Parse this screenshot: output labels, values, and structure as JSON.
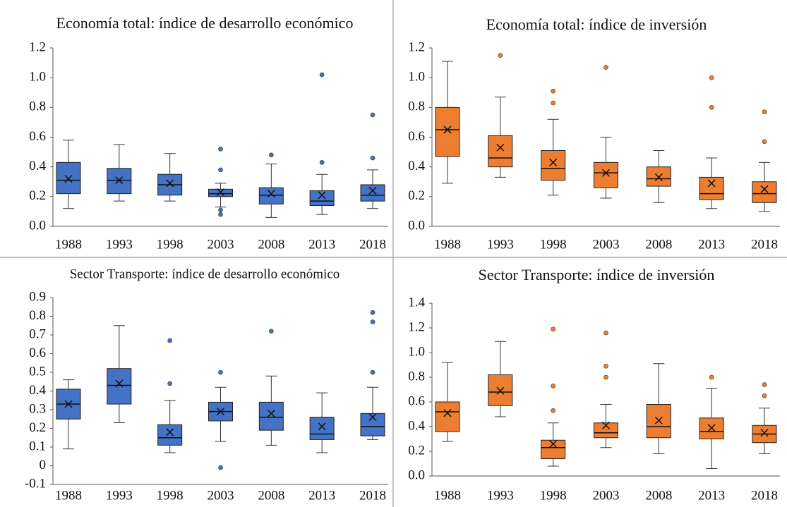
{
  "chart_data": [
    {
      "type": "box",
      "title": "Economía total: índice de desarrollo económico",
      "color": "#4472c4",
      "categories": [
        "1988",
        "1993",
        "1998",
        "2003",
        "2008",
        "2013",
        "2018"
      ],
      "ylim": [
        0,
        1.2
      ],
      "yticks": [
        {
          "value": 0,
          "label": "0.0"
        },
        0.2,
        0.4,
        0.6,
        0.8,
        {
          "value": 1,
          "label": "1.0"
        },
        1.2
      ],
      "boxes": [
        {
          "min": 0.12,
          "q1": 0.22,
          "median": 0.31,
          "q3": 0.43,
          "max": 0.58,
          "mean": 0.32,
          "outliers": []
        },
        {
          "min": 0.17,
          "q1": 0.22,
          "median": 0.31,
          "q3": 0.39,
          "max": 0.55,
          "mean": 0.31,
          "outliers": []
        },
        {
          "min": 0.17,
          "q1": 0.21,
          "median": 0.28,
          "q3": 0.35,
          "max": 0.49,
          "mean": 0.29,
          "outliers": []
        },
        {
          "min": 0.13,
          "q1": 0.2,
          "median": 0.22,
          "q3": 0.25,
          "max": 0.29,
          "mean": 0.23,
          "outliers": [
            0.52,
            0.38,
            0.11,
            0.08
          ]
        },
        {
          "min": 0.06,
          "q1": 0.15,
          "median": 0.21,
          "q3": 0.26,
          "max": 0.42,
          "mean": 0.22,
          "outliers": [
            0.48
          ]
        },
        {
          "min": 0.08,
          "q1": 0.14,
          "median": 0.17,
          "q3": 0.24,
          "max": 0.35,
          "mean": 0.21,
          "outliers": [
            1.02,
            0.43
          ]
        },
        {
          "min": 0.12,
          "q1": 0.17,
          "median": 0.21,
          "q3": 0.28,
          "max": 0.38,
          "mean": 0.24,
          "outliers": [
            0.75,
            0.46
          ]
        }
      ]
    },
    {
      "type": "box",
      "title": "Economía total: índice de inversión",
      "color": "#ed7d31",
      "categories": [
        "1988",
        "1993",
        "1998",
        "2003",
        "2008",
        "2013",
        "2018"
      ],
      "ylim": [
        0,
        1.2
      ],
      "yticks": [
        {
          "value": 0,
          "label": "0.0"
        },
        0.2,
        0.4,
        0.6,
        0.8,
        {
          "value": 1,
          "label": "1.0"
        },
        1.2
      ],
      "boxes": [
        {
          "min": 0.29,
          "q1": 0.47,
          "median": 0.65,
          "q3": 0.8,
          "max": 1.11,
          "mean": 0.65,
          "outliers": []
        },
        {
          "min": 0.33,
          "q1": 0.4,
          "median": 0.46,
          "q3": 0.61,
          "max": 0.87,
          "mean": 0.53,
          "outliers": [
            1.15
          ]
        },
        {
          "min": 0.21,
          "q1": 0.31,
          "median": 0.39,
          "q3": 0.51,
          "max": 0.72,
          "mean": 0.43,
          "outliers": [
            0.91,
            0.83
          ]
        },
        {
          "min": 0.19,
          "q1": 0.26,
          "median": 0.36,
          "q3": 0.43,
          "max": 0.6,
          "mean": 0.36,
          "outliers": [
            1.07
          ]
        },
        {
          "min": 0.16,
          "q1": 0.27,
          "median": 0.32,
          "q3": 0.4,
          "max": 0.51,
          "mean": 0.33,
          "outliers": []
        },
        {
          "min": 0.12,
          "q1": 0.18,
          "median": 0.22,
          "q3": 0.33,
          "max": 0.46,
          "mean": 0.29,
          "outliers": [
            1.0,
            0.8
          ]
        },
        {
          "min": 0.1,
          "q1": 0.16,
          "median": 0.22,
          "q3": 0.3,
          "max": 0.43,
          "mean": 0.25,
          "outliers": [
            0.77,
            0.57
          ]
        }
      ]
    },
    {
      "type": "box",
      "title": "Sector Transporte: índice de desarrollo económico",
      "color": "#4472c4",
      "categories": [
        "1988",
        "1993",
        "1998",
        "2003",
        "2008",
        "2013",
        "2018"
      ],
      "ylim": [
        -0.1,
        0.9
      ],
      "yticks": [
        -0.1,
        0,
        0.1,
        0.2,
        0.3,
        0.4,
        0.5,
        0.6,
        0.7,
        0.8,
        0.9
      ],
      "boxes": [
        {
          "min": 0.09,
          "q1": 0.25,
          "median": 0.33,
          "q3": 0.41,
          "max": 0.46,
          "mean": 0.33,
          "outliers": []
        },
        {
          "min": 0.23,
          "q1": 0.33,
          "median": 0.43,
          "q3": 0.52,
          "max": 0.75,
          "mean": 0.44,
          "outliers": []
        },
        {
          "min": 0.07,
          "q1": 0.11,
          "median": 0.15,
          "q3": 0.22,
          "max": 0.35,
          "mean": 0.18,
          "outliers": [
            0.67,
            0.44
          ]
        },
        {
          "min": 0.13,
          "q1": 0.24,
          "median": 0.29,
          "q3": 0.34,
          "max": 0.42,
          "mean": 0.29,
          "outliers": [
            0.5,
            -0.01
          ]
        },
        {
          "min": 0.11,
          "q1": 0.19,
          "median": 0.26,
          "q3": 0.34,
          "max": 0.48,
          "mean": 0.28,
          "outliers": [
            0.72
          ]
        },
        {
          "min": 0.07,
          "q1": 0.14,
          "median": 0.17,
          "q3": 0.26,
          "max": 0.39,
          "mean": 0.21,
          "outliers": []
        },
        {
          "min": 0.14,
          "q1": 0.16,
          "median": 0.21,
          "q3": 0.28,
          "max": 0.42,
          "mean": 0.26,
          "outliers": [
            0.82,
            0.77,
            0.5
          ]
        }
      ]
    },
    {
      "type": "box",
      "title": "Sector Transporte: índice de inversión",
      "color": "#ed7d31",
      "categories": [
        "1988",
        "1993",
        "1998",
        "2003",
        "2008",
        "2013",
        "2018"
      ],
      "ylim": [
        0,
        1.4
      ],
      "yticks": [
        {
          "value": 0,
          "label": "0.0"
        },
        0.2,
        0.4,
        0.6,
        0.8,
        {
          "value": 1,
          "label": "1.0"
        },
        1.2,
        1.4
      ],
      "boxes": [
        {
          "min": 0.28,
          "q1": 0.36,
          "median": 0.52,
          "q3": 0.6,
          "max": 0.92,
          "mean": 0.51,
          "outliers": []
        },
        {
          "min": 0.48,
          "q1": 0.57,
          "median": 0.68,
          "q3": 0.82,
          "max": 1.09,
          "mean": 0.69,
          "outliers": []
        },
        {
          "min": 0.08,
          "q1": 0.14,
          "median": 0.23,
          "q3": 0.29,
          "max": 0.43,
          "mean": 0.26,
          "outliers": [
            1.19,
            0.73,
            0.53
          ]
        },
        {
          "min": 0.23,
          "q1": 0.31,
          "median": 0.35,
          "q3": 0.43,
          "max": 0.58,
          "mean": 0.41,
          "outliers": [
            1.16,
            0.89,
            0.8
          ]
        },
        {
          "min": 0.18,
          "q1": 0.31,
          "median": 0.4,
          "q3": 0.58,
          "max": 0.91,
          "mean": 0.45,
          "outliers": []
        },
        {
          "min": 0.06,
          "q1": 0.3,
          "median": 0.36,
          "q3": 0.47,
          "max": 0.71,
          "mean": 0.39,
          "outliers": [
            0.8
          ]
        },
        {
          "min": 0.18,
          "q1": 0.27,
          "median": 0.34,
          "q3": 0.41,
          "max": 0.55,
          "mean": 0.35,
          "outliers": [
            0.74,
            0.65
          ]
        }
      ]
    }
  ]
}
